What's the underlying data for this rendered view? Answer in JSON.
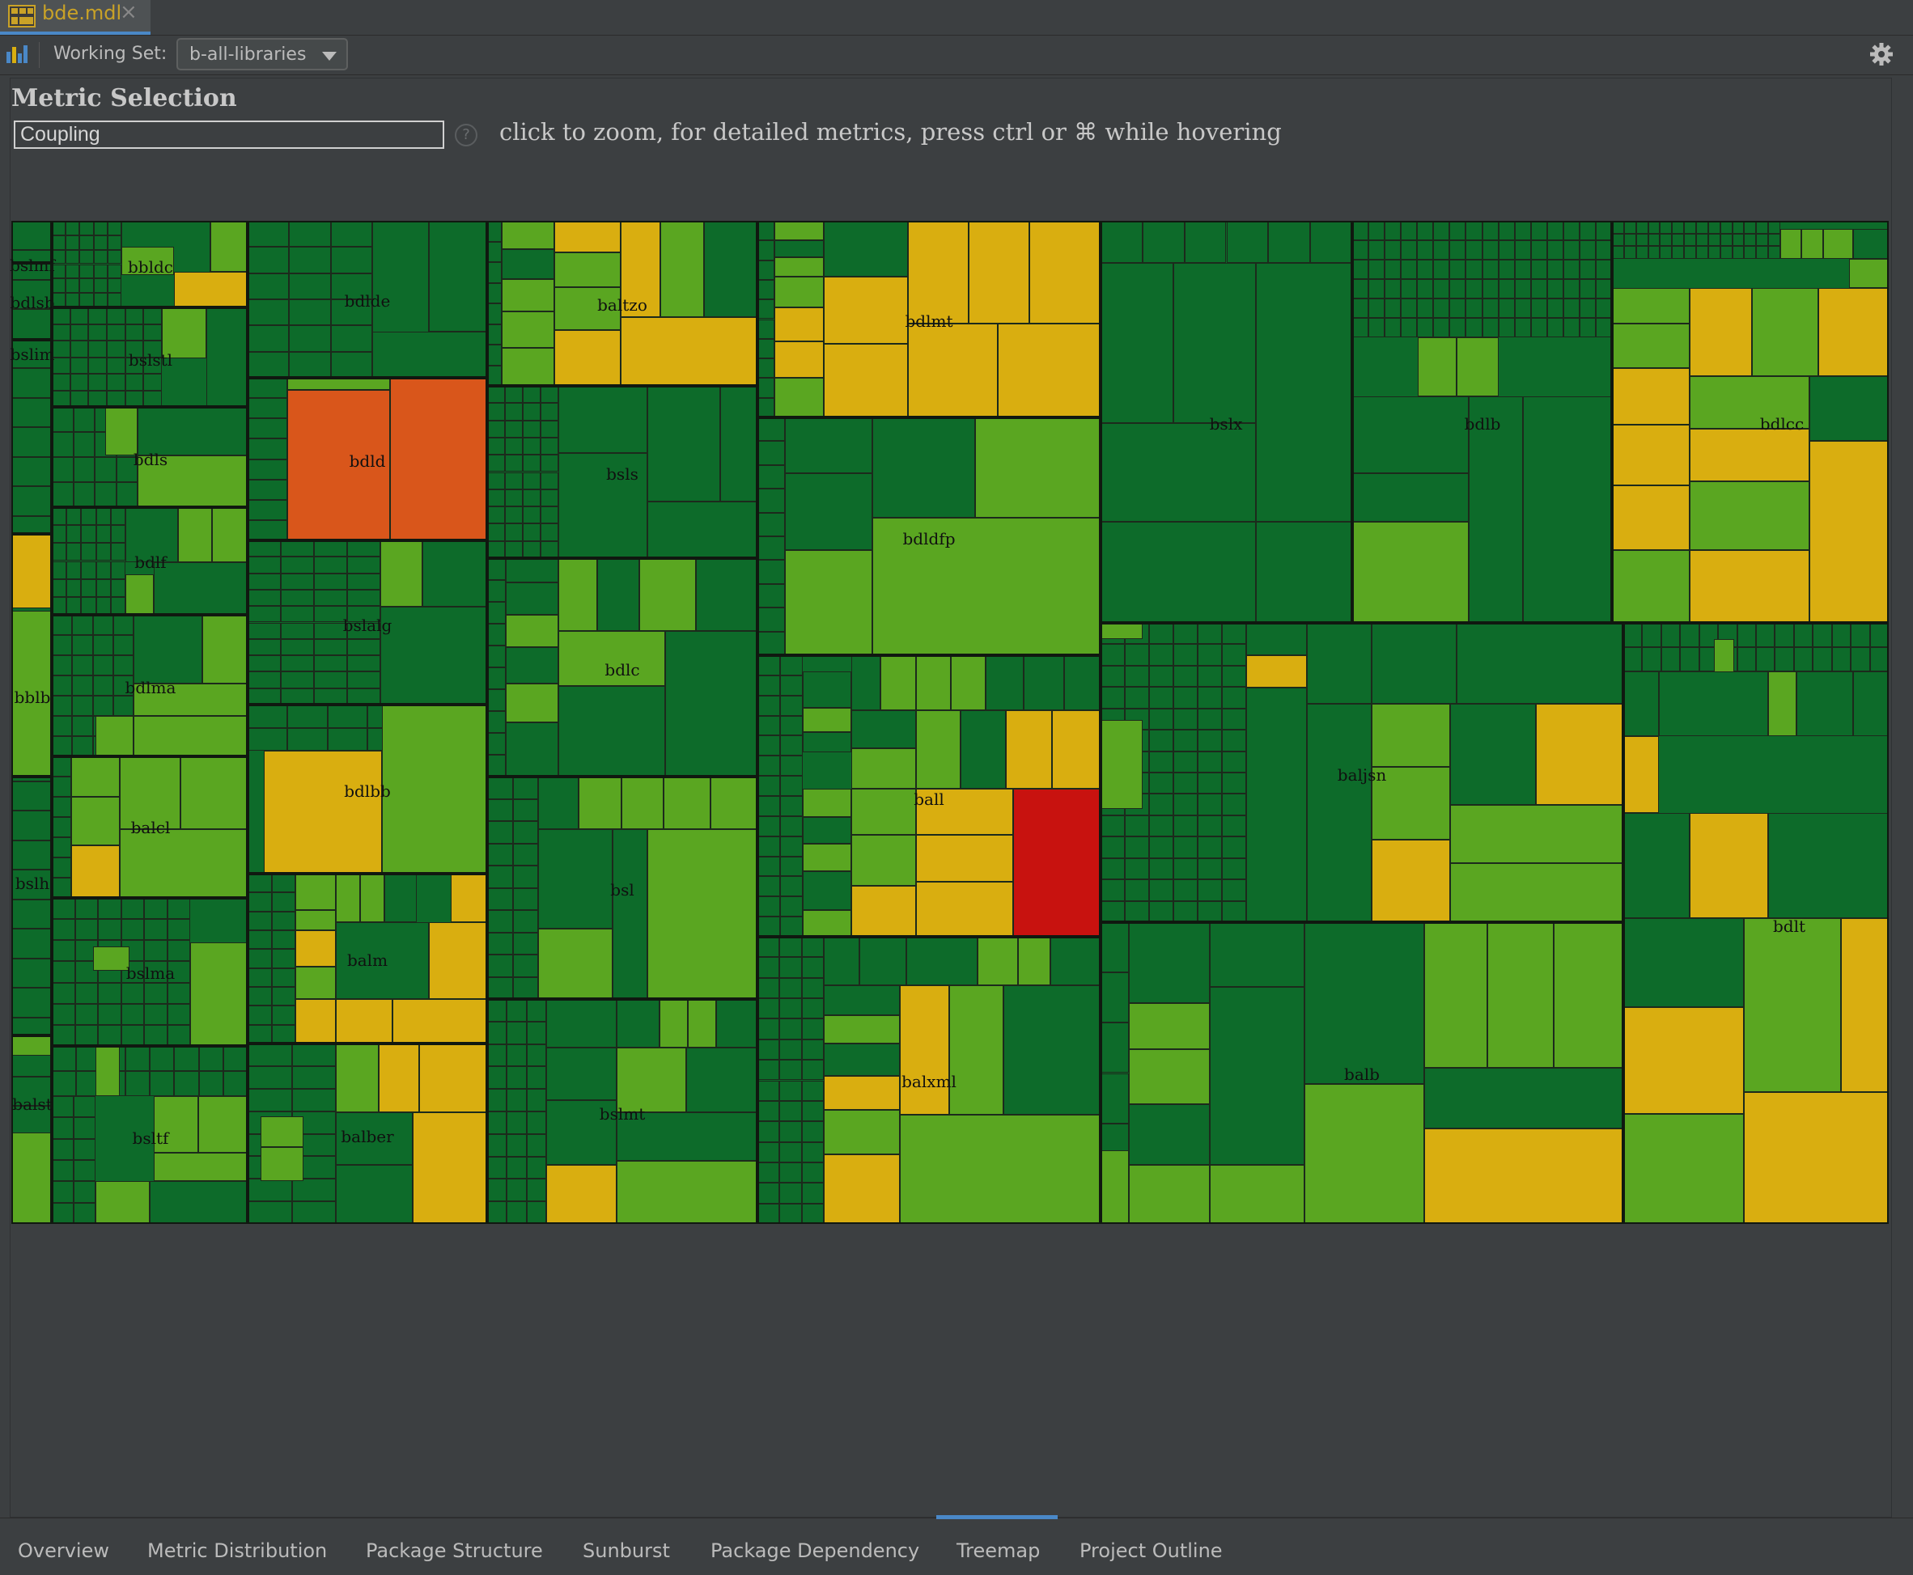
{
  "file_tab": {
    "name": "bde.mdl"
  },
  "toolbar": {
    "working_set_label": "Working Set:",
    "working_set_value": "b-all-libraries"
  },
  "metric": {
    "title": "Metric Selection",
    "selected": "Coupling",
    "hint": "click to zoom, for detailed metrics, press ctrl or ⌘ while hovering"
  },
  "bottom_tabs": [
    "Overview",
    "Metric Distribution",
    "Package Structure",
    "Sunburst",
    "Package Dependency",
    "Treemap",
    "Project Outline"
  ],
  "active_tab": "Treemap",
  "colors": {
    "dark_green": "#0d6b2a",
    "light_green": "#5aa621",
    "yellow": "#d9ae10",
    "orange": "#d9561b",
    "red": "#c8120f"
  },
  "treemap": {
    "packages": [
      "bslmf",
      "bdlsb",
      "bslim",
      "bblb",
      "bslh",
      "balst",
      "bbldc",
      "bslstl",
      "bdls",
      "bdlf",
      "bdlma",
      "balcl",
      "bslma",
      "bsltf",
      "bdlde",
      "bdld",
      "bslalg",
      "bdlbb",
      "balm",
      "balber",
      "baltzo",
      "bsls",
      "bdlc",
      "bsl",
      "bslmt",
      "bdlmt",
      "bdldfp",
      "ball",
      "balxml",
      "bslx",
      "bdlb",
      "bdlcc",
      "baljsn",
      "balb",
      "bdlt"
    ]
  }
}
